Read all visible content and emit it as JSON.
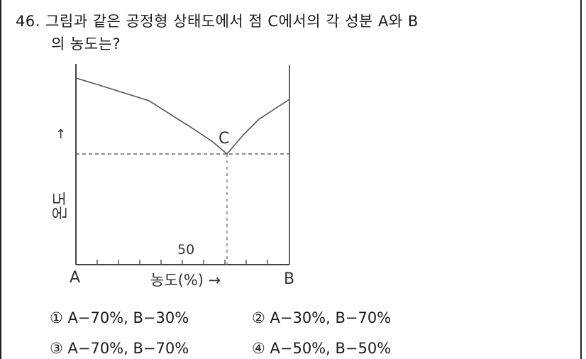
{
  "question": {
    "line1": "46. 그림과 같은 공정형 상태도에서 점 C에서의 각 성분 A와 B",
    "line2": "의 농도는?"
  },
  "diagram": {
    "point_label": "C",
    "tick_label": "50",
    "left_axis_label": "A",
    "right_axis_label": "B",
    "x_axis_title": "농도(%) →",
    "y_axis_title": "온도",
    "y_arrow": "↑"
  },
  "choices": [
    {
      "text": "① A−70%, B−30%"
    },
    {
      "text": "② A−30%, B−70%"
    },
    {
      "text": "③ A−70%, B−70%"
    },
    {
      "text": "④ A−50%, B−50%"
    }
  ]
}
